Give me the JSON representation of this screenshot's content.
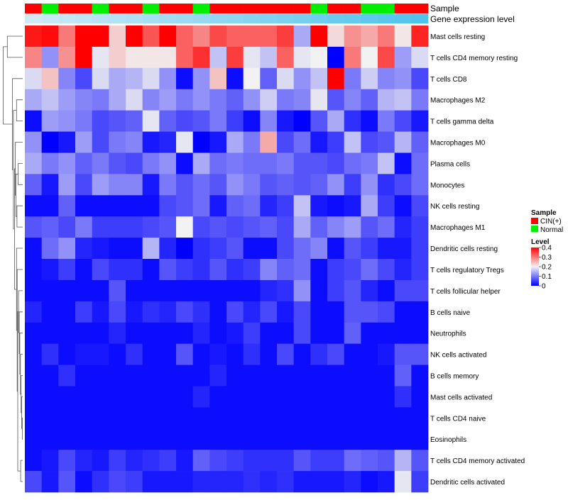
{
  "chart_data": {
    "type": "heatmap",
    "title": "",
    "xlabel": "",
    "ylabel": "",
    "annotation_tracks": [
      "Sample",
      "Gene expression level"
    ],
    "rows": [
      "Mast cells resting",
      "T cells CD4 memory resting",
      "T cells CD8",
      "Macrophages M2",
      "T cells gamma delta",
      "Macrophages M0",
      "Plasma cells",
      "Monocytes",
      "NK cells resting",
      "Macrophages M1",
      "Dendritic cells resting",
      "T cells regulatory  Tregs",
      "T cells follicular helper",
      "B cells naive",
      "Neutrophils",
      "NK cells activated",
      "B cells memory",
      "Mast cells activated",
      "T cells CD4 naive",
      "Eosinophils",
      "T cells CD4 memory activated",
      "Dendritic cells activated"
    ],
    "sample_groups": [
      "CIN(+)",
      "Normal",
      "CIN(+)",
      "CIN(+)",
      "Normal",
      "CIN(+)",
      "CIN(+)",
      "Normal",
      "CIN(+)",
      "CIN(+)",
      "Normal",
      "CIN(+)",
      "CIN(+)",
      "CIN(+)",
      "CIN(+)",
      "CIN(+)",
      "CIN(+)",
      "Normal",
      "CIN(+)",
      "CIN(+)",
      "Normal",
      "Normal",
      "CIN(+)",
      "CIN(+)"
    ],
    "expression_track": [
      0.08,
      0.09,
      0.1,
      0.11,
      0.12,
      0.13,
      0.14,
      0.15,
      0.16,
      0.17,
      0.18,
      0.19,
      0.2,
      0.21,
      0.22,
      0.23,
      0.24,
      0.25,
      0.26,
      0.27,
      0.28,
      0.29,
      0.3,
      0.31
    ],
    "values": [
      [
        0.38,
        0.39,
        0.3,
        0.4,
        0.4,
        0.23,
        0.4,
        0.33,
        0.4,
        0.32,
        0.29,
        0.34,
        0.32,
        0.32,
        0.32,
        0.35,
        0.14,
        0.4,
        0.22,
        0.28,
        0.26,
        0.3,
        0.21,
        0.37
      ],
      [
        0.29,
        0.12,
        0.28,
        0.4,
        0.19,
        0.23,
        0.21,
        0.21,
        0.21,
        0.32,
        0.36,
        0.16,
        0.35,
        0.19,
        0.16,
        0.32,
        0.19,
        0.2,
        0.0,
        0.3,
        0.2,
        0.34,
        0.13,
        0.18
      ],
      [
        0.18,
        0.24,
        0.11,
        0.06,
        0.18,
        0.14,
        0.15,
        0.18,
        0.12,
        0.01,
        0.12,
        0.24,
        0.01,
        0.2,
        0.08,
        0.18,
        0.12,
        0.16,
        0.4,
        0.1,
        0.17,
        0.11,
        0.12,
        0.06
      ],
      [
        0.14,
        0.16,
        0.13,
        0.11,
        0.1,
        0.14,
        0.18,
        0.11,
        0.13,
        0.1,
        0.12,
        0.1,
        0.08,
        0.12,
        0.17,
        0.1,
        0.11,
        0.19,
        0.07,
        0.11,
        0.08,
        0.15,
        0.16,
        0.1
      ],
      [
        0.01,
        0.13,
        0.12,
        0.1,
        0.06,
        0.07,
        0.08,
        0.19,
        0.08,
        0.06,
        0.07,
        0.1,
        0.05,
        0.01,
        0.11,
        0.02,
        0.0,
        0.07,
        0.14,
        0.04,
        0.01,
        0.1,
        0.06,
        0.02
      ],
      [
        0.12,
        0.0,
        0.02,
        0.13,
        0.06,
        0.1,
        0.11,
        0.02,
        0.03,
        0.19,
        0.0,
        0.02,
        0.14,
        0.1,
        0.26,
        0.06,
        0.09,
        0.02,
        0.05,
        0.16,
        0.06,
        0.07,
        0.15,
        0.08
      ],
      [
        0.14,
        0.1,
        0.12,
        0.08,
        0.1,
        0.07,
        0.06,
        0.1,
        0.12,
        0.01,
        0.14,
        0.09,
        0.1,
        0.09,
        0.09,
        0.1,
        0.07,
        0.07,
        0.06,
        0.09,
        0.1,
        0.16,
        0.01,
        0.09
      ],
      [
        0.08,
        0.02,
        0.13,
        0.06,
        0.13,
        0.11,
        0.11,
        0.02,
        0.1,
        0.07,
        0.09,
        0.07,
        0.12,
        0.1,
        0.07,
        0.08,
        0.07,
        0.08,
        0.12,
        0.05,
        0.12,
        0.04,
        0.06,
        0.09
      ],
      [
        0.01,
        0.01,
        0.08,
        0.01,
        0.01,
        0.01,
        0.01,
        0.01,
        0.06,
        0.07,
        0.09,
        0.02,
        0.08,
        0.09,
        0.03,
        0.05,
        0.16,
        0.02,
        0.01,
        0.02,
        0.14,
        0.05,
        0.01,
        0.06
      ],
      [
        0.07,
        0.08,
        0.06,
        0.1,
        0.05,
        0.05,
        0.05,
        0.06,
        0.07,
        0.2,
        0.06,
        0.07,
        0.06,
        0.07,
        0.08,
        0.06,
        0.14,
        0.08,
        0.11,
        0.13,
        0.07,
        0.09,
        0.03,
        0.05
      ],
      [
        0.01,
        0.09,
        0.12,
        0.03,
        0.02,
        0.01,
        0.01,
        0.15,
        0.03,
        0.0,
        0.04,
        0.05,
        0.07,
        0.01,
        0.01,
        0.06,
        0.09,
        0.11,
        0.01,
        0.07,
        0.05,
        0.02,
        0.02,
        0.05
      ],
      [
        0.01,
        0.02,
        0.05,
        0.01,
        0.06,
        0.04,
        0.04,
        0.01,
        0.07,
        0.05,
        0.04,
        0.07,
        0.04,
        0.05,
        0.11,
        0.08,
        0.09,
        0.01,
        0.05,
        0.06,
        0.09,
        0.06,
        0.03,
        0.05
      ],
      [
        0.01,
        0.01,
        0.01,
        0.01,
        0.01,
        0.07,
        0.01,
        0.01,
        0.01,
        0.01,
        0.01,
        0.01,
        0.01,
        0.01,
        0.03,
        0.04,
        0.12,
        0.01,
        0.05,
        0.07,
        0.03,
        0.01,
        0.06,
        0.06
      ],
      [
        0.03,
        0.01,
        0.01,
        0.05,
        0.02,
        0.06,
        0.02,
        0.04,
        0.03,
        0.06,
        0.04,
        0.01,
        0.06,
        0.03,
        0.06,
        0.02,
        0.06,
        0.01,
        0.01,
        0.07,
        0.07,
        0.06,
        0.01,
        0.01
      ],
      [
        0.01,
        0.01,
        0.01,
        0.01,
        0.01,
        0.03,
        0.01,
        0.01,
        0.01,
        0.01,
        0.03,
        0.01,
        0.02,
        0.05,
        0.01,
        0.01,
        0.06,
        0.01,
        0.01,
        0.08,
        0.01,
        0.01,
        0.01,
        0.01
      ],
      [
        0.01,
        0.04,
        0.01,
        0.02,
        0.02,
        0.01,
        0.04,
        0.01,
        0.01,
        0.07,
        0.01,
        0.02,
        0.01,
        0.04,
        0.01,
        0.06,
        0.01,
        0.04,
        0.06,
        0.01,
        0.01,
        0.02,
        0.07,
        0.07
      ],
      [
        0.01,
        0.01,
        0.04,
        0.01,
        0.01,
        0.01,
        0.01,
        0.01,
        0.01,
        0.01,
        0.01,
        0.03,
        0.01,
        0.01,
        0.01,
        0.01,
        0.01,
        0.01,
        0.01,
        0.01,
        0.01,
        0.01,
        0.08,
        0.01
      ],
      [
        0.01,
        0.01,
        0.01,
        0.01,
        0.01,
        0.01,
        0.01,
        0.01,
        0.01,
        0.01,
        0.03,
        0.01,
        0.01,
        0.01,
        0.01,
        0.01,
        0.01,
        0.01,
        0.01,
        0.01,
        0.01,
        0.01,
        0.04,
        0.01
      ],
      [
        0.01,
        0.01,
        0.01,
        0.01,
        0.01,
        0.01,
        0.01,
        0.01,
        0.01,
        0.01,
        0.01,
        0.01,
        0.01,
        0.01,
        0.01,
        0.01,
        0.01,
        0.01,
        0.01,
        0.01,
        0.01,
        0.01,
        0.01,
        0.01
      ],
      [
        0.01,
        0.01,
        0.01,
        0.01,
        0.01,
        0.01,
        0.01,
        0.01,
        0.01,
        0.01,
        0.01,
        0.01,
        0.01,
        0.01,
        0.01,
        0.01,
        0.01,
        0.01,
        0.01,
        0.01,
        0.01,
        0.01,
        0.01,
        0.01
      ],
      [
        0.01,
        0.02,
        0.06,
        0.03,
        0.02,
        0.05,
        0.03,
        0.04,
        0.05,
        0.02,
        0.08,
        0.06,
        0.05,
        0.04,
        0.04,
        0.04,
        0.07,
        0.05,
        0.05,
        0.09,
        0.08,
        0.07,
        0.15,
        0.07
      ],
      [
        0.06,
        0.02,
        0.07,
        0.01,
        0.04,
        0.06,
        0.05,
        0.02,
        0.02,
        0.02,
        0.03,
        0.03,
        0.03,
        0.04,
        0.03,
        0.04,
        0.02,
        0.02,
        0.02,
        0.03,
        0.01,
        0.02,
        0.19,
        0.05
      ]
    ],
    "color_scale": {
      "min": 0,
      "mid": 0.2,
      "max": 0.4,
      "low_color": "#0000ff",
      "mid_color": "#f2f2f2",
      "high_color": "#ff0000"
    },
    "sample_colors": {
      "CIN(+)": "#ff0000",
      "Normal": "#00ee00"
    },
    "legend": {
      "sample_title": "Sample",
      "sample_items": [
        "CIN(+)",
        "Normal"
      ],
      "level_title": "Level",
      "level_ticks": [
        "0.4",
        "0.3",
        "0.2",
        "0.1",
        "0"
      ],
      "level_tick_values": [
        0.4,
        0.3,
        0.2,
        0.1,
        0
      ],
      "placement": "right"
    },
    "expression_track_colors": {
      "low": "#cfeaf6",
      "high": "#4fc3ec"
    }
  }
}
